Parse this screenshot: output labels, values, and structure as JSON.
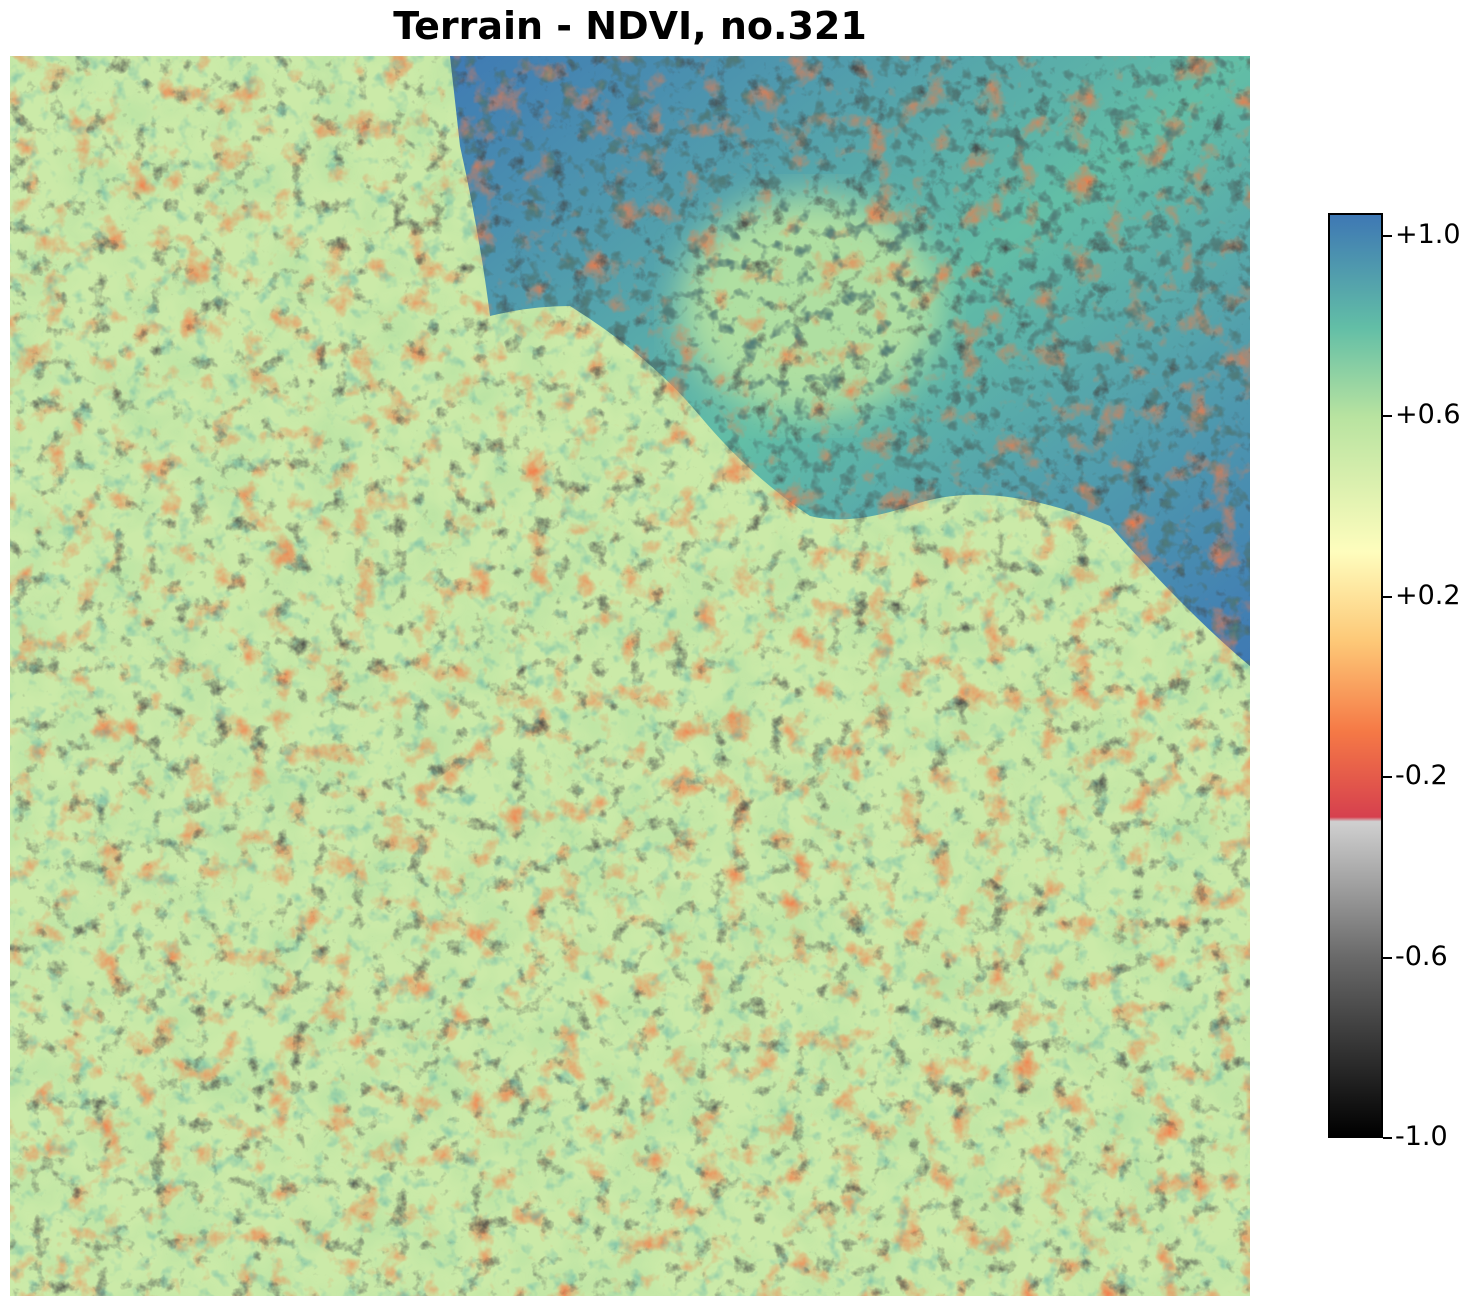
{
  "chart_data": {
    "type": "heatmap",
    "title": "Terrain - NDVI, no.321",
    "xlabel": "",
    "ylabel": "",
    "axes_visible": false,
    "grid": false,
    "colorbar": {
      "position": "right",
      "vmin": -1.0,
      "vmax": 1.05,
      "ticks": [
        1.0,
        0.6,
        0.2,
        -0.2,
        -0.6,
        -1.0
      ],
      "tick_labels": [
        "+1.0",
        "+0.6",
        "+0.2",
        "-0.2",
        "-0.6",
        "-1.0"
      ],
      "colormap_stops": [
        {
          "value": -1.0,
          "color": "#000000"
        },
        {
          "value": -0.6,
          "color": "#6a6a6a"
        },
        {
          "value": -0.3,
          "color": "#d0d0d0"
        },
        {
          "value": -0.29,
          "color": "#d6404e"
        },
        {
          "value": -0.1,
          "color": "#f57946"
        },
        {
          "value": 0.1,
          "color": "#fdc877"
        },
        {
          "value": 0.3,
          "color": "#fefdbd"
        },
        {
          "value": 0.6,
          "color": "#b8e3a0"
        },
        {
          "value": 0.8,
          "color": "#62bea6"
        },
        {
          "value": 1.05,
          "color": "#3e78b4"
        }
      ]
    },
    "regions": [
      {
        "name": "background_vegetation",
        "ndvi": 0.52
      },
      {
        "name": "northeast_dense",
        "ndvi": 0.85
      },
      {
        "name": "northeast_core",
        "ndvi": 0.62
      },
      {
        "name": "bare_patches",
        "ndvi": -0.75
      },
      {
        "name": "sparse_patches",
        "ndvi": -0.1
      }
    ]
  }
}
